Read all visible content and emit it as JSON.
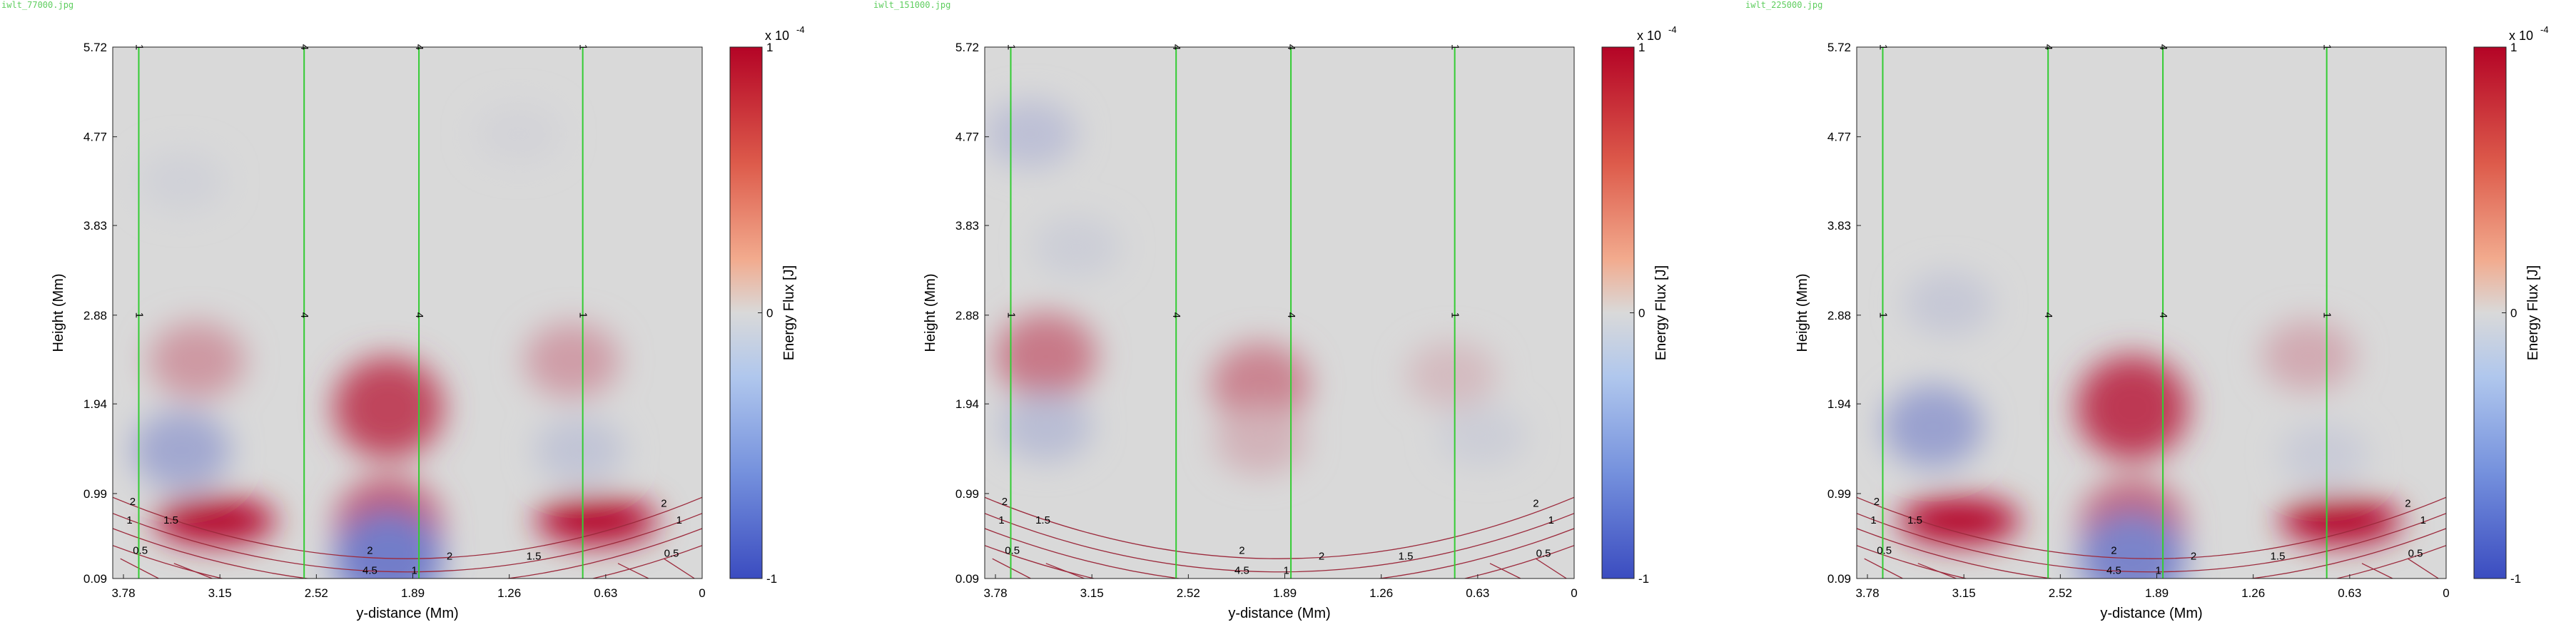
{
  "panels": [
    {
      "filename": "iwlt_77000.jpg",
      "chart_data": {
        "type": "heatmap",
        "xlabel": "y-distance (Mm)",
        "ylabel": "Height (Mm)",
        "x_ticks": [
          "3.78",
          "3.15",
          "2.52",
          "1.89",
          "1.26",
          "0.63",
          "0"
        ],
        "y_ticks": [
          "0.09",
          "0.99",
          "1.94",
          "2.88",
          "3.83",
          "4.77",
          "5.72"
        ],
        "xlim": [
          3.85,
          0.0
        ],
        "ylim": [
          0.09,
          5.72
        ],
        "x_reversed": true,
        "colorbar": {
          "label": "Energy Flux [J]",
          "exponent": "x 10",
          "exponent_power": "-4",
          "ticks": [
            "1",
            "0",
            "-1"
          ],
          "range": [
            -1,
            1
          ]
        },
        "green_lines_x": [
          3.68,
          2.6,
          1.85,
          0.78
        ],
        "green_line_labels": [
          {
            "x": 3.68,
            "y": 5.72,
            "text": "1"
          },
          {
            "x": 2.6,
            "y": 5.72,
            "text": "4"
          },
          {
            "x": 1.85,
            "y": 5.72,
            "text": "4"
          },
          {
            "x": 0.78,
            "y": 5.72,
            "text": "1"
          },
          {
            "x": 3.68,
            "y": 2.88,
            "text": "1"
          },
          {
            "x": 2.6,
            "y": 2.88,
            "text": "4"
          },
          {
            "x": 1.85,
            "y": 2.88,
            "text": "4"
          },
          {
            "x": 0.78,
            "y": 2.88,
            "text": "1"
          }
        ],
        "contour_labels": [
          {
            "x": 3.72,
            "y": 0.9,
            "text": "2"
          },
          {
            "x": 3.74,
            "y": 0.7,
            "text": "1"
          },
          {
            "x": 3.47,
            "y": 0.7,
            "text": "1.5"
          },
          {
            "x": 3.67,
            "y": 0.38,
            "text": "0.5"
          },
          {
            "x": 2.17,
            "y": 0.38,
            "text": "2"
          },
          {
            "x": 2.17,
            "y": 0.17,
            "text": "4.5"
          },
          {
            "x": 1.65,
            "y": 0.32,
            "text": "2"
          },
          {
            "x": 1.1,
            "y": 0.32,
            "text": "1.5"
          },
          {
            "x": 0.25,
            "y": 0.88,
            "text": "2"
          },
          {
            "x": 0.15,
            "y": 0.7,
            "text": "1"
          },
          {
            "x": 0.2,
            "y": 0.35,
            "text": "0.5"
          },
          {
            "x": 1.88,
            "y": 0.17,
            "text": "1"
          }
        ],
        "flux_blobs": [
          {
            "x": 3.18,
            "y": 0.7,
            "value": 1.0
          },
          {
            "x": 0.69,
            "y": 0.7,
            "value": 1.0
          },
          {
            "x": 2.05,
            "y": 0.65,
            "value": 0.6
          },
          {
            "x": 2.05,
            "y": 0.3,
            "value": -0.65
          },
          {
            "x": 2.05,
            "y": 1.9,
            "value": 0.7
          },
          {
            "x": 3.3,
            "y": 2.4,
            "value": 0.3
          },
          {
            "x": 0.85,
            "y": 2.4,
            "value": 0.28
          },
          {
            "x": 3.4,
            "y": 1.45,
            "value": -0.35
          },
          {
            "x": 0.8,
            "y": 1.45,
            "value": -0.15
          },
          {
            "x": 3.4,
            "y": 4.3,
            "value": -0.06
          },
          {
            "x": 1.2,
            "y": 4.8,
            "value": -0.04
          }
        ]
      }
    },
    {
      "filename": "iwlt_151000.jpg",
      "chart_data": {
        "type": "heatmap",
        "xlabel": "y-distance (Mm)",
        "ylabel": "Height (Mm)",
        "x_ticks": [
          "3.78",
          "3.15",
          "2.52",
          "1.89",
          "1.26",
          "0.63",
          "0"
        ],
        "y_ticks": [
          "0.09",
          "0.99",
          "1.94",
          "2.88",
          "3.83",
          "4.77",
          "5.72"
        ],
        "xlim": [
          3.85,
          0.0
        ],
        "ylim": [
          0.09,
          5.72
        ],
        "x_reversed": true,
        "colorbar": {
          "label": "Energy Flux [J]",
          "exponent": "x 10",
          "exponent_power": "-4",
          "ticks": [
            "1",
            "0",
            "-1"
          ],
          "range": [
            -1,
            1
          ]
        },
        "green_lines_x": [
          3.68,
          2.6,
          1.85,
          0.78
        ],
        "green_line_labels": [
          {
            "x": 3.68,
            "y": 5.72,
            "text": "1"
          },
          {
            "x": 2.6,
            "y": 5.72,
            "text": "4"
          },
          {
            "x": 1.85,
            "y": 5.72,
            "text": "4"
          },
          {
            "x": 0.78,
            "y": 5.72,
            "text": "1"
          },
          {
            "x": 3.68,
            "y": 2.88,
            "text": "1"
          },
          {
            "x": 2.6,
            "y": 2.88,
            "text": "4"
          },
          {
            "x": 1.85,
            "y": 2.88,
            "text": "4"
          },
          {
            "x": 0.78,
            "y": 2.88,
            "text": "1"
          }
        ],
        "contour_labels": [
          {
            "x": 3.72,
            "y": 0.9,
            "text": "2"
          },
          {
            "x": 3.74,
            "y": 0.7,
            "text": "1"
          },
          {
            "x": 3.47,
            "y": 0.7,
            "text": "1.5"
          },
          {
            "x": 3.67,
            "y": 0.38,
            "text": "0.5"
          },
          {
            "x": 2.17,
            "y": 0.38,
            "text": "2"
          },
          {
            "x": 2.17,
            "y": 0.17,
            "text": "4.5"
          },
          {
            "x": 1.65,
            "y": 0.32,
            "text": "2"
          },
          {
            "x": 1.1,
            "y": 0.32,
            "text": "1.5"
          },
          {
            "x": 0.25,
            "y": 0.88,
            "text": "2"
          },
          {
            "x": 0.15,
            "y": 0.7,
            "text": "1"
          },
          {
            "x": 0.2,
            "y": 0.35,
            "text": "0.5"
          },
          {
            "x": 1.88,
            "y": 0.17,
            "text": "1"
          }
        ],
        "flux_blobs": [
          {
            "x": 3.45,
            "y": 2.45,
            "value": 0.45
          },
          {
            "x": 2.05,
            "y": 2.15,
            "value": 0.4
          },
          {
            "x": 2.05,
            "y": 1.55,
            "value": 0.18
          },
          {
            "x": 0.8,
            "y": 2.25,
            "value": 0.14
          },
          {
            "x": 3.45,
            "y": 1.7,
            "value": -0.2
          },
          {
            "x": 0.6,
            "y": 1.6,
            "value": -0.08
          },
          {
            "x": 3.55,
            "y": 4.8,
            "value": -0.18
          },
          {
            "x": 3.25,
            "y": 3.6,
            "value": -0.08
          }
        ]
      }
    },
    {
      "filename": "iwlt_225000.jpg",
      "chart_data": {
        "type": "heatmap",
        "xlabel": "y-distance (Mm)",
        "ylabel": "Height (Mm)",
        "x_ticks": [
          "3.78",
          "3.15",
          "2.52",
          "1.89",
          "1.26",
          "0.63",
          "0"
        ],
        "y_ticks": [
          "0.09",
          "0.99",
          "1.94",
          "2.88",
          "3.83",
          "4.77",
          "5.72"
        ],
        "xlim": [
          3.85,
          0.0
        ],
        "ylim": [
          0.09,
          5.72
        ],
        "x_reversed": true,
        "colorbar": {
          "label": "Energy Flux [J]",
          "exponent": "x 10",
          "exponent_power": "-4",
          "ticks": [
            "1",
            "0",
            "-1"
          ],
          "range": [
            -1,
            1
          ]
        },
        "green_lines_x": [
          3.68,
          2.6,
          1.85,
          0.78
        ],
        "green_line_labels": [
          {
            "x": 3.68,
            "y": 5.72,
            "text": "1"
          },
          {
            "x": 2.6,
            "y": 5.72,
            "text": "4"
          },
          {
            "x": 1.85,
            "y": 5.72,
            "text": "4"
          },
          {
            "x": 0.78,
            "y": 5.72,
            "text": "1"
          },
          {
            "x": 3.68,
            "y": 2.88,
            "text": "1"
          },
          {
            "x": 2.6,
            "y": 2.88,
            "text": "4"
          },
          {
            "x": 1.85,
            "y": 2.88,
            "text": "4"
          },
          {
            "x": 0.78,
            "y": 2.88,
            "text": "1"
          }
        ],
        "contour_labels": [
          {
            "x": 3.72,
            "y": 0.9,
            "text": "2"
          },
          {
            "x": 3.74,
            "y": 0.7,
            "text": "1"
          },
          {
            "x": 3.47,
            "y": 0.7,
            "text": "1.5"
          },
          {
            "x": 3.67,
            "y": 0.38,
            "text": "0.5"
          },
          {
            "x": 2.17,
            "y": 0.38,
            "text": "2"
          },
          {
            "x": 2.17,
            "y": 0.17,
            "text": "4.5"
          },
          {
            "x": 1.65,
            "y": 0.32,
            "text": "2"
          },
          {
            "x": 1.1,
            "y": 0.32,
            "text": "1.5"
          },
          {
            "x": 0.25,
            "y": 0.88,
            "text": "2"
          },
          {
            "x": 0.15,
            "y": 0.7,
            "text": "1"
          },
          {
            "x": 0.2,
            "y": 0.35,
            "text": "0.5"
          },
          {
            "x": 1.88,
            "y": 0.17,
            "text": "1"
          }
        ],
        "flux_blobs": [
          {
            "x": 3.18,
            "y": 0.7,
            "value": 1.0
          },
          {
            "x": 0.69,
            "y": 0.7,
            "value": 1.0
          },
          {
            "x": 2.05,
            "y": 0.65,
            "value": 0.55
          },
          {
            "x": 2.05,
            "y": 0.3,
            "value": -0.6
          },
          {
            "x": 2.05,
            "y": 1.9,
            "value": 0.75
          },
          {
            "x": 0.9,
            "y": 2.45,
            "value": 0.22
          },
          {
            "x": 3.35,
            "y": 1.7,
            "value": -0.4
          },
          {
            "x": 3.25,
            "y": 3.0,
            "value": -0.12
          },
          {
            "x": 0.8,
            "y": 1.4,
            "value": -0.1
          }
        ]
      }
    }
  ],
  "colors": {
    "background": "#d9d9d9",
    "positive": "#b40426",
    "negative": "#3b4cc0",
    "green_line": "#33cc33",
    "contour": "#9c2a3c",
    "filename": "#5fce5f"
  }
}
